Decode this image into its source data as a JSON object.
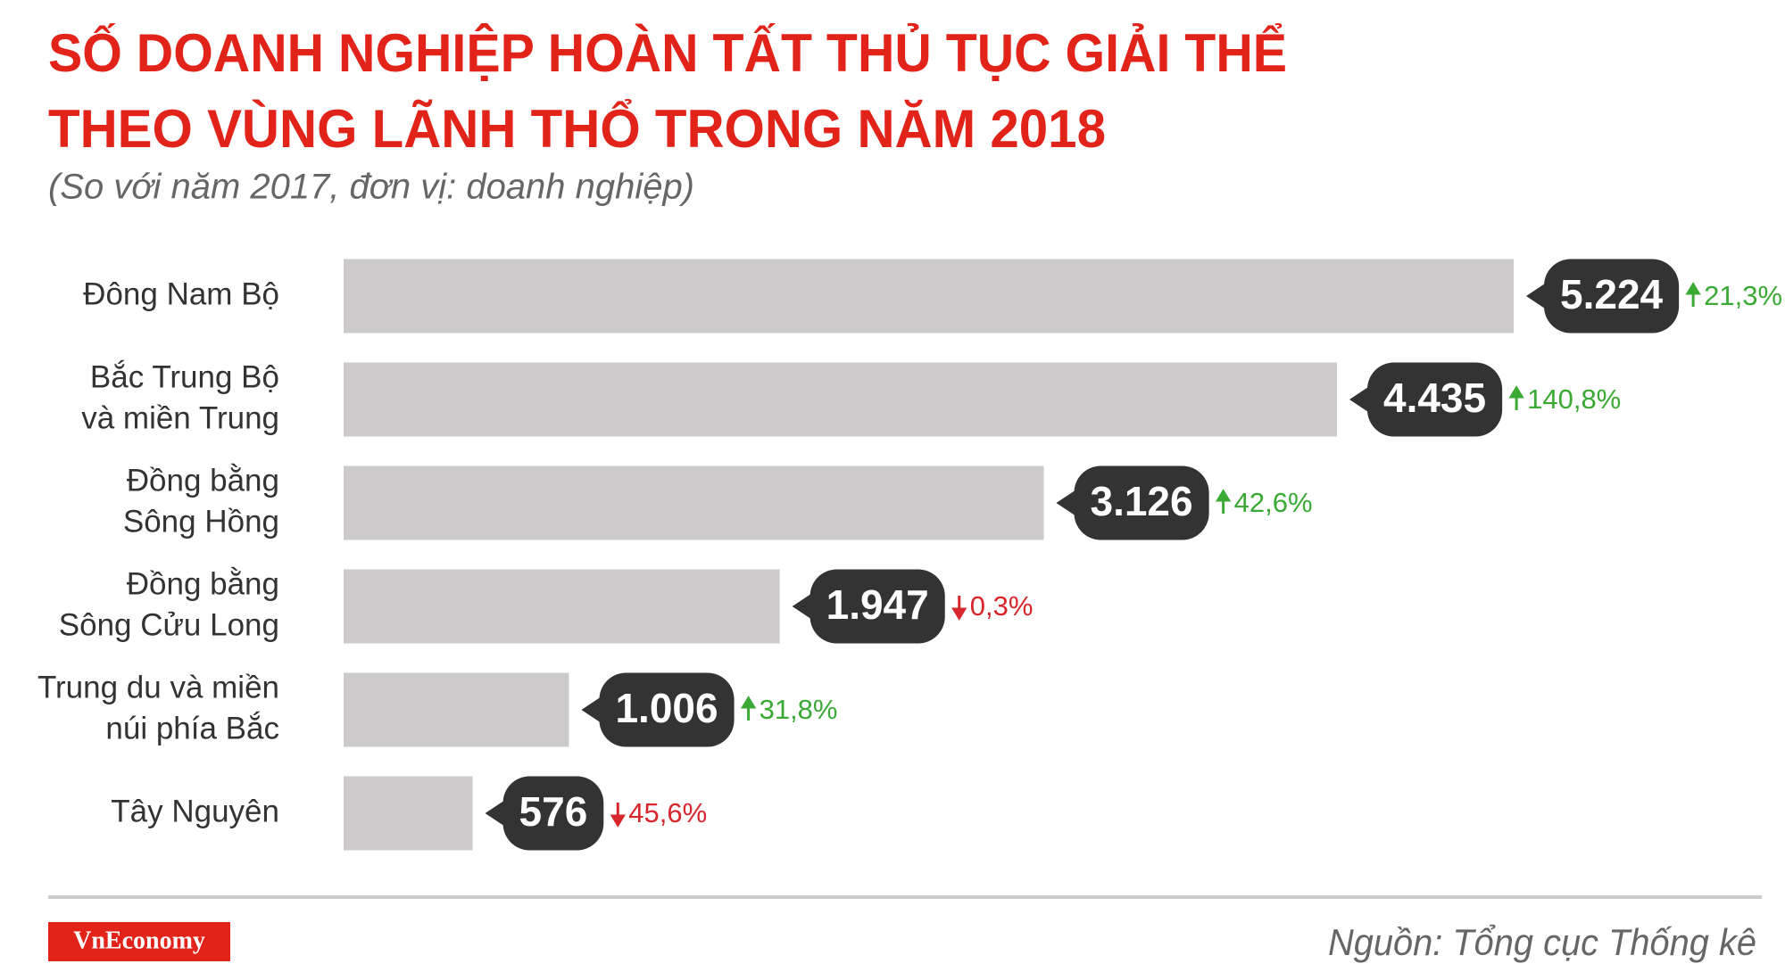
{
  "chart_data": {
    "type": "bar",
    "orientation": "horizontal",
    "title": [
      "SỐ DOANH NGHIỆP HOÀN TẤT THỦ TỤC GIẢI THỂ",
      "THEO VÙNG LÃNH THỔ TRONG NĂM 2018"
    ],
    "subtitle": "(So với năm 2017, đơn vị: doanh nghiệp)",
    "categories": [
      [
        "Đông Nam Bộ"
      ],
      [
        "Bắc Trung Bộ",
        "và miền Trung"
      ],
      [
        "Đồng bằng",
        "Sông Hồng"
      ],
      [
        "Đồng bằng",
        "Sông Cửu Long"
      ],
      [
        "Trung du và miền",
        "núi phía Bắc"
      ],
      [
        "Tây Nguyên"
      ]
    ],
    "values": [
      5224,
      4435,
      3126,
      1947,
      1006,
      576
    ],
    "value_labels": [
      "5.224",
      "4.435",
      "3.126",
      "1.947",
      "1.006",
      "576"
    ],
    "changes": [
      21.3,
      140.8,
      42.6,
      -0.3,
      31.8,
      -45.6
    ],
    "change_labels": [
      "21,3%",
      "140,8%",
      "42,6%",
      "0,3%",
      "31,8%",
      "45,6%"
    ],
    "color": "#cccacb",
    "label_color": "#333333",
    "up_color": "#3aaa35",
    "down_color": "#d7262c",
    "source": "Nguồn: Tổng cục Thống kê",
    "brand": "VnEconomy"
  }
}
